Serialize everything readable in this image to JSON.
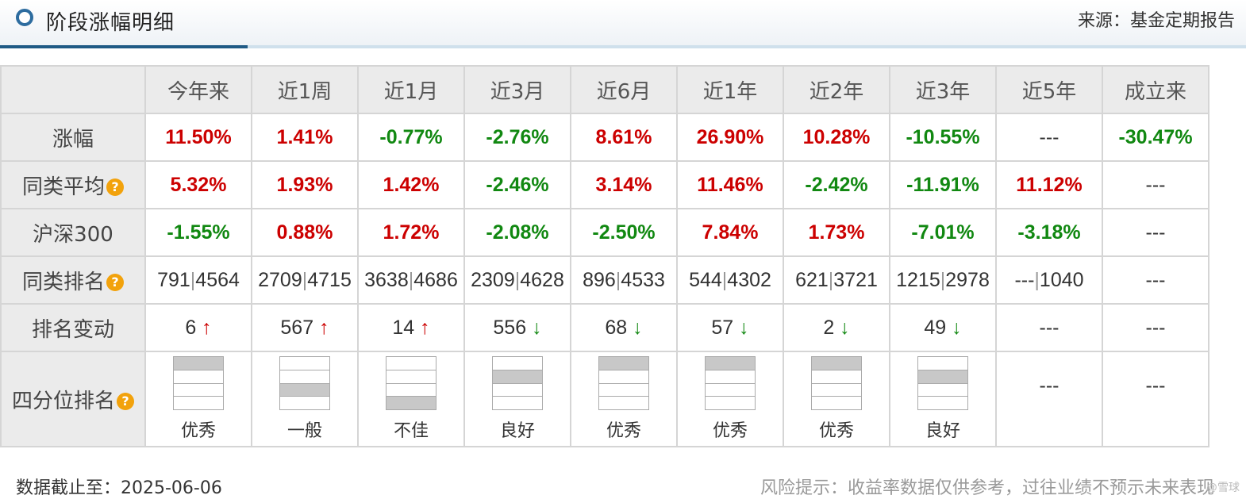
{
  "header": {
    "title": "阶段涨幅明细",
    "source": "来源：基金定期报告"
  },
  "columns": [
    "今年来",
    "近1周",
    "近1月",
    "近3月",
    "近6月",
    "近1年",
    "近2年",
    "近3年",
    "近5年",
    "成立来"
  ],
  "rows": {
    "gain": {
      "label": "涨幅",
      "cells": [
        {
          "text": "11.50%",
          "dir": "up"
        },
        {
          "text": "1.41%",
          "dir": "up"
        },
        {
          "text": "-0.77%",
          "dir": "down"
        },
        {
          "text": "-2.76%",
          "dir": "down"
        },
        {
          "text": "8.61%",
          "dir": "up"
        },
        {
          "text": "26.90%",
          "dir": "up"
        },
        {
          "text": "10.28%",
          "dir": "up"
        },
        {
          "text": "-10.55%",
          "dir": "down"
        },
        {
          "text": "---",
          "dir": "none"
        },
        {
          "text": "-30.47%",
          "dir": "down"
        }
      ]
    },
    "peer_avg": {
      "label": "同类平均",
      "cells": [
        {
          "text": "5.32%",
          "dir": "up"
        },
        {
          "text": "1.93%",
          "dir": "up"
        },
        {
          "text": "1.42%",
          "dir": "up"
        },
        {
          "text": "-2.46%",
          "dir": "down"
        },
        {
          "text": "3.14%",
          "dir": "up"
        },
        {
          "text": "11.46%",
          "dir": "up"
        },
        {
          "text": "-2.42%",
          "dir": "down"
        },
        {
          "text": "-11.91%",
          "dir": "down"
        },
        {
          "text": "11.12%",
          "dir": "up"
        },
        {
          "text": "---",
          "dir": "none"
        }
      ]
    },
    "hs300": {
      "label": "沪深300",
      "cells": [
        {
          "text": "-1.55%",
          "dir": "down"
        },
        {
          "text": "0.88%",
          "dir": "up"
        },
        {
          "text": "1.72%",
          "dir": "up"
        },
        {
          "text": "-2.08%",
          "dir": "down"
        },
        {
          "text": "-2.50%",
          "dir": "down"
        },
        {
          "text": "7.84%",
          "dir": "up"
        },
        {
          "text": "1.73%",
          "dir": "up"
        },
        {
          "text": "-7.01%",
          "dir": "down"
        },
        {
          "text": "-3.18%",
          "dir": "down"
        },
        {
          "text": "---",
          "dir": "none"
        }
      ]
    },
    "peer_rank": {
      "label": "同类排名",
      "cells": [
        {
          "rank": "791",
          "total": "4564"
        },
        {
          "rank": "2709",
          "total": "4715"
        },
        {
          "rank": "3638",
          "total": "4686"
        },
        {
          "rank": "2309",
          "total": "4628"
        },
        {
          "rank": "896",
          "total": "4533"
        },
        {
          "rank": "544",
          "total": "4302"
        },
        {
          "rank": "621",
          "total": "3721"
        },
        {
          "rank": "1215",
          "total": "2978"
        },
        {
          "rank": "---",
          "total": "1040"
        },
        {
          "rank": "---",
          "total": null
        }
      ]
    },
    "rank_change": {
      "label": "排名变动",
      "cells": [
        {
          "value": "6",
          "dir": "up"
        },
        {
          "value": "567",
          "dir": "up"
        },
        {
          "value": "14",
          "dir": "up"
        },
        {
          "value": "556",
          "dir": "down"
        },
        {
          "value": "68",
          "dir": "down"
        },
        {
          "value": "57",
          "dir": "down"
        },
        {
          "value": "2",
          "dir": "down"
        },
        {
          "value": "49",
          "dir": "down"
        },
        {
          "value": "---",
          "dir": "none"
        },
        {
          "value": "---",
          "dir": "none"
        }
      ]
    },
    "quartile": {
      "label": "四分位排名",
      "cells": [
        {
          "quartile": 1,
          "text": "优秀"
        },
        {
          "quartile": 3,
          "text": "一般"
        },
        {
          "quartile": 4,
          "text": "不佳"
        },
        {
          "quartile": 2,
          "text": "良好"
        },
        {
          "quartile": 1,
          "text": "优秀"
        },
        {
          "quartile": 1,
          "text": "优秀"
        },
        {
          "quartile": 1,
          "text": "优秀"
        },
        {
          "quartile": 2,
          "text": "良好"
        },
        {
          "quartile": null,
          "text": "---"
        },
        {
          "quartile": null,
          "text": "---"
        }
      ]
    }
  },
  "icons": {
    "help": "help-icon",
    "help_glyph": "?"
  },
  "colors": {
    "up": "#cc0000",
    "down": "#118811",
    "accent": "#1f5a85",
    "help": "#f2a20c"
  },
  "footer": {
    "date": "数据截止至：2025-06-06",
    "risk": "风险提示：收益率数据仅供参考，过往业绩不预示未来表现",
    "watermark": "@雪球"
  }
}
